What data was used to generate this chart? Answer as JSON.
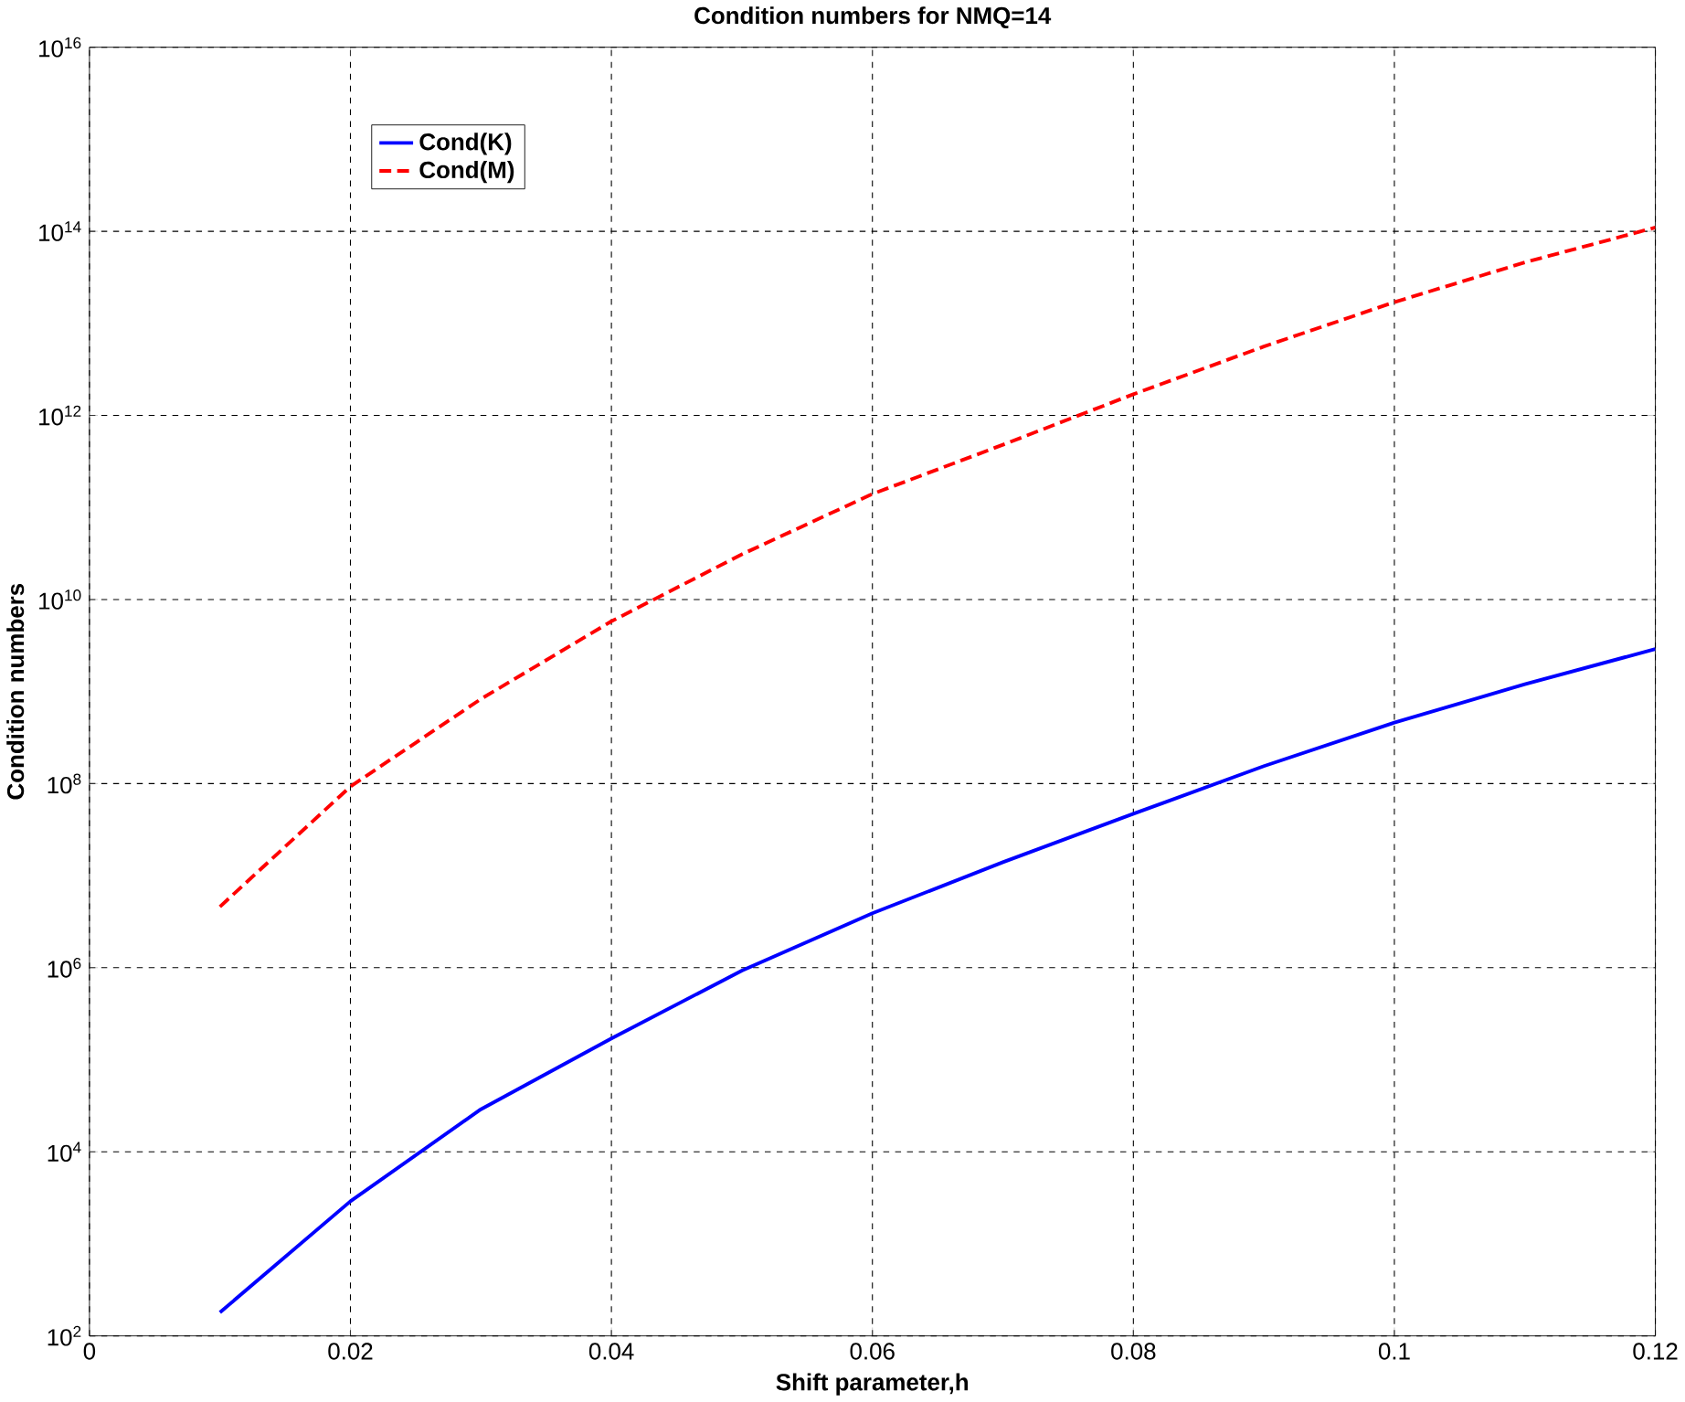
{
  "chart_data": {
    "type": "line",
    "title": "Condition numbers for NMQ=14",
    "xlabel": "Shift parameter,h",
    "ylabel": "Condition numbers",
    "x": [
      0.01,
      0.02,
      0.03,
      0.04,
      0.05,
      0.06,
      0.07,
      0.08,
      0.09,
      0.1,
      0.11,
      0.12
    ],
    "series": [
      {
        "name": "Cond(K)",
        "color": "#0000ff",
        "line_style": "solid",
        "values": [
          180,
          2900,
          29000,
          170000,
          930000,
          3900000,
          14000000,
          47000000,
          155000000,
          460000000,
          1200000000,
          2900000000
        ]
      },
      {
        "name": "Cond(M)",
        "color": "#ff0000",
        "line_style": "dashed",
        "values": [
          4600000,
          93000000,
          830000000,
          5800000000,
          31000000000,
          140000000000,
          480000000000,
          1700000000000,
          5600000000000,
          17000000000000,
          46000000000000,
          110000000000000
        ]
      }
    ],
    "log": "y",
    "xlim": [
      0,
      0.12
    ],
    "ylim": [
      100,
      10000000000000000
    ],
    "xticks": [
      0,
      0.02,
      0.04,
      0.06,
      0.08,
      0.1,
      0.12
    ],
    "yticks": [
      {
        "value": 100,
        "label": "10$^{2}$"
      },
      {
        "value": 10000,
        "label": "10$^{4}$"
      },
      {
        "value": 1000000,
        "label": "10$^{6}$"
      },
      {
        "value": 100000000,
        "label": "10$^{8}$"
      },
      {
        "value": 10000000000,
        "label": "10$^{10}$"
      },
      {
        "value": 1000000000000,
        "label": "10$^{12}$"
      },
      {
        "value": 100000000000000,
        "label": "10$^{14}$"
      },
      {
        "value": 10000000000000000,
        "label": "10$^{16}$"
      }
    ],
    "grid": true,
    "legend": "top left",
    "marker": "none"
  }
}
